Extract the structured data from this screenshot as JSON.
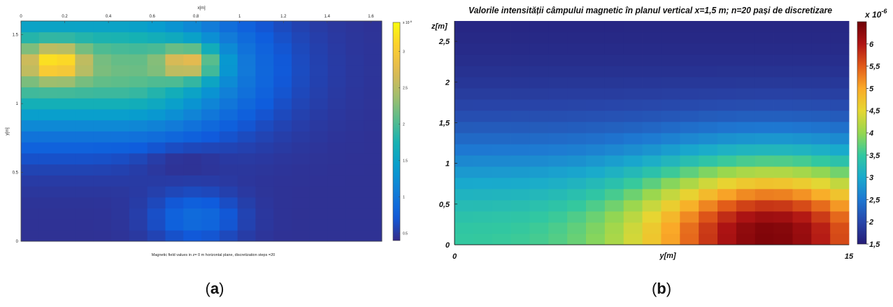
{
  "chart_data": [
    {
      "panel": "(a)",
      "type": "heatmap",
      "title": "Magnetic field values in z= 0 m horizontal plane, discretization steps =20",
      "xlabel": "x[m]",
      "ylabel": "y[m]",
      "xlim": [
        0,
        1.65
      ],
      "ylim": [
        0,
        1.6
      ],
      "x_ticks": [
        "0",
        "0.2",
        "0.4",
        "0.6",
        "0.8",
        "1",
        "1.2",
        "1.4",
        "1.6"
      ],
      "x_tick_values": [
        0,
        0.2,
        0.4,
        0.6,
        0.8,
        1,
        1.2,
        1.4,
        1.6
      ],
      "y_ticks": [
        "0",
        "0.5",
        "1",
        "1.5"
      ],
      "y_tick_values": [
        0,
        0.5,
        1,
        1.5
      ],
      "x_axis_position": "top",
      "grid": false,
      "colorbar": {
        "position": "right",
        "multiplier": "x 10",
        "exponent": "-6",
        "range": [
          0.4,
          3.4
        ],
        "ticks": [
          "0.5",
          "1",
          "1.5",
          "2",
          "2.5",
          "3"
        ],
        "tick_values": [
          0.5,
          1,
          1.5,
          2,
          2.5,
          3
        ]
      },
      "grid_size": [
        20,
        20
      ],
      "field_features": {
        "peaks": [
          {
            "x": 0.16,
            "y": 1.3,
            "value": 3.35
          },
          {
            "x": 0.77,
            "y": 1.3,
            "value": 3.35
          }
        ],
        "background_peak_value": 2.15,
        "local_minimum_near": {
          "x": 0.72,
          "y": 0.6
        },
        "secondary_maximum_near": {
          "x": 0.8,
          "y": 0.17,
          "value": 1.0
        },
        "minimum_value": 0.45
      }
    },
    {
      "panel": "(b)",
      "type": "heatmap",
      "title": "Valorile intensității câmpului magnetic în planul vertical x=1,5 m; n=20 pași de discretizare",
      "xlabel": "y[m]",
      "ylabel": "z[m]",
      "xlim": [
        0,
        15
      ],
      "ylim": [
        0,
        2.75
      ],
      "x_ticks": [
        "0",
        "15"
      ],
      "x_tick_values": [
        0,
        15
      ],
      "y_ticks": [
        "0",
        "0,5",
        "1",
        "1,5",
        "2",
        "2,5"
      ],
      "y_tick_values": [
        0,
        0.5,
        1,
        1.5,
        2,
        2.5
      ],
      "grid": false,
      "colorbar": {
        "position": "right",
        "multiplier": "x 10",
        "exponent": "-6",
        "range": [
          1.5,
          6.5
        ],
        "ticks": [
          "1,5",
          "2",
          "2,5",
          "3",
          "3,5",
          "4",
          "4,5",
          "5",
          "5,5",
          "6"
        ],
        "tick_values": [
          1.5,
          2,
          2.5,
          3,
          3.5,
          4,
          4.5,
          5,
          5.5,
          6
        ]
      },
      "grid_size": [
        21,
        20
      ],
      "field_features": {
        "maximum": {
          "y": 12.0,
          "z": 0.15,
          "value": 6.4
        },
        "value_at_top": 1.6,
        "value_at_left_bottom": 3.5
      }
    }
  ],
  "captions": {
    "a": "(a)",
    "b": "(b)"
  }
}
